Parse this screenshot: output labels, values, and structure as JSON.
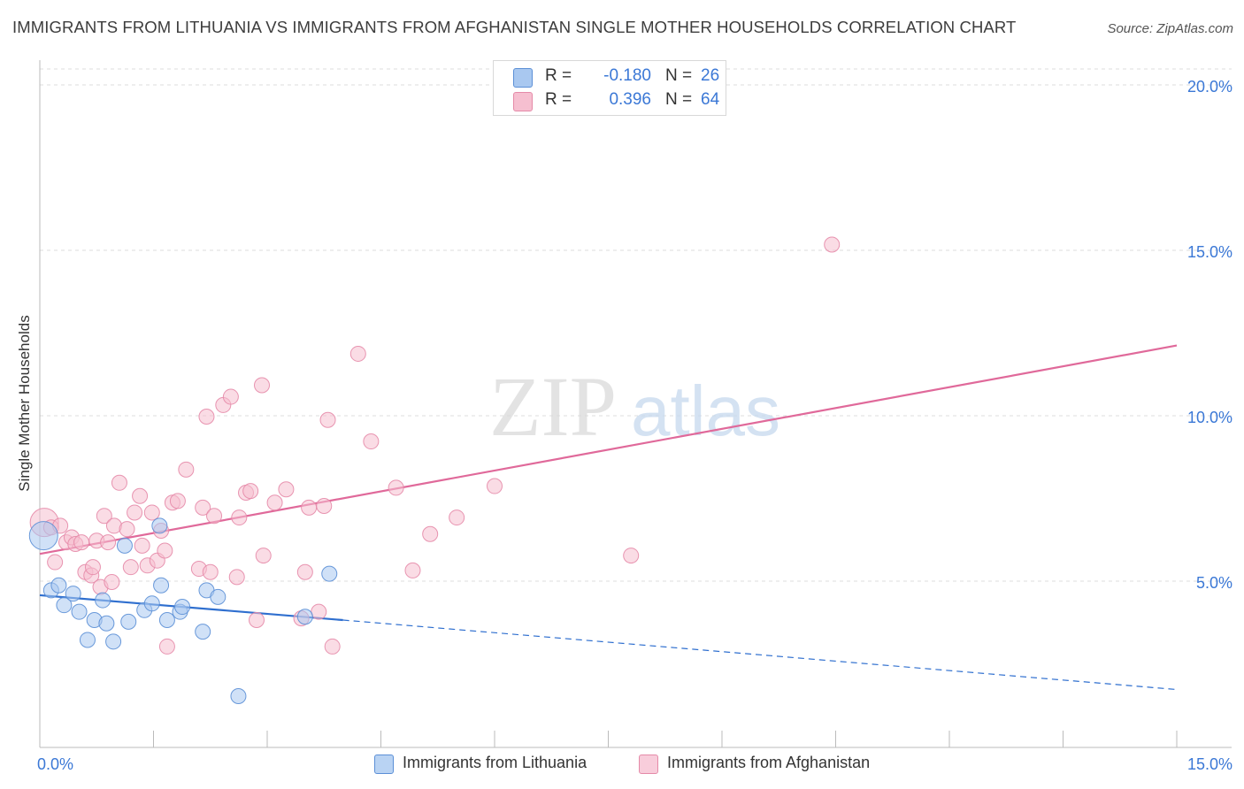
{
  "header": {
    "title": "IMMIGRANTS FROM LITHUANIA VS IMMIGRANTS FROM AFGHANISTAN SINGLE MOTHER HOUSEHOLDS CORRELATION CHART",
    "source": "Source: ZipAtlas.com"
  },
  "legend_top": {
    "rows": [
      {
        "label": "R =",
        "r_value": "-0.180",
        "n_label": "N =",
        "n_value": "26"
      },
      {
        "label": "R =",
        "r_value": "0.396",
        "n_label": "N =",
        "n_value": "64"
      }
    ]
  },
  "legend_bottom": {
    "items": [
      {
        "label": "Immigrants from Lithuania"
      },
      {
        "label": "Immigrants from Afghanistan"
      }
    ]
  },
  "colors": {
    "lithuania_fill": "#a9c8f0",
    "lithuania_stroke": "#5b8fd6",
    "lithuania_line": "#2f6fcf",
    "afghanistan_fill": "#f6bfd0",
    "afghanistan_stroke": "#e58aa8",
    "afghanistan_line": "#e0699a",
    "axis_text": "#3b78d6",
    "grid": "#dcdcdc"
  },
  "chart_data": {
    "type": "scatter",
    "title": "IMMIGRANTS FROM LITHUANIA VS IMMIGRANTS FROM AFGHANISTAN SINGLE MOTHER HOUSEHOLDS CORRELATION CHART",
    "xlabel": "",
    "ylabel": "Single Mother Households",
    "xlim": [
      0,
      15
    ],
    "ylim": [
      0,
      20.5
    ],
    "x_tick_labels": [
      {
        "value": 0,
        "label": "0.0%"
      },
      {
        "value": 15,
        "label": "15.0%"
      }
    ],
    "y_ticks": [
      {
        "value": 5,
        "label": "5.0%"
      },
      {
        "value": 10,
        "label": "10.0%"
      },
      {
        "value": 15,
        "label": "15.0%"
      },
      {
        "value": 20,
        "label": "20.0%"
      }
    ],
    "watermark": {
      "part1": "ZIP",
      "part2": "atlas"
    },
    "series": [
      {
        "name": "Immigrants from Lithuania",
        "r": -0.18,
        "n": 26,
        "trend": {
          "x0": 0.0,
          "y0": 4.6,
          "x1": 4.0,
          "y1": 3.85,
          "dash_to_x": 15.0,
          "dash_to_y": 1.75
        },
        "points": [
          {
            "x": 0.05,
            "y": 6.4,
            "size": "large"
          },
          {
            "x": 0.15,
            "y": 4.75
          },
          {
            "x": 0.25,
            "y": 4.9
          },
          {
            "x": 0.32,
            "y": 4.3
          },
          {
            "x": 0.44,
            "y": 4.65
          },
          {
            "x": 0.52,
            "y": 4.1
          },
          {
            "x": 0.63,
            "y": 3.25
          },
          {
            "x": 0.72,
            "y": 3.85
          },
          {
            "x": 0.83,
            "y": 4.45
          },
          {
            "x": 0.88,
            "y": 3.75
          },
          {
            "x": 0.97,
            "y": 3.2
          },
          {
            "x": 1.12,
            "y": 6.1
          },
          {
            "x": 1.17,
            "y": 3.8
          },
          {
            "x": 1.38,
            "y": 4.15
          },
          {
            "x": 1.48,
            "y": 4.35
          },
          {
            "x": 1.58,
            "y": 6.7
          },
          {
            "x": 1.6,
            "y": 4.9
          },
          {
            "x": 1.68,
            "y": 3.85
          },
          {
            "x": 1.85,
            "y": 4.1
          },
          {
            "x": 1.88,
            "y": 4.25
          },
          {
            "x": 2.15,
            "y": 3.5
          },
          {
            "x": 2.2,
            "y": 4.75
          },
          {
            "x": 2.35,
            "y": 4.55
          },
          {
            "x": 2.62,
            "y": 1.55
          },
          {
            "x": 3.5,
            "y": 3.95
          },
          {
            "x": 3.82,
            "y": 5.25
          }
        ]
      },
      {
        "name": "Immigrants from Afghanistan",
        "r": 0.396,
        "n": 64,
        "trend": {
          "x0": 0.0,
          "y0": 5.85,
          "x1": 15.0,
          "y1": 12.15
        },
        "points": [
          {
            "x": 0.06,
            "y": 6.8,
            "size": "large"
          },
          {
            "x": 0.15,
            "y": 6.65
          },
          {
            "x": 0.2,
            "y": 5.6
          },
          {
            "x": 0.27,
            "y": 6.7
          },
          {
            "x": 0.35,
            "y": 6.2
          },
          {
            "x": 0.42,
            "y": 6.35
          },
          {
            "x": 0.47,
            "y": 6.15
          },
          {
            "x": 0.55,
            "y": 6.2
          },
          {
            "x": 0.6,
            "y": 5.3
          },
          {
            "x": 0.68,
            "y": 5.2
          },
          {
            "x": 0.7,
            "y": 5.45
          },
          {
            "x": 0.75,
            "y": 6.25
          },
          {
            "x": 0.8,
            "y": 4.85
          },
          {
            "x": 0.85,
            "y": 7.0
          },
          {
            "x": 0.9,
            "y": 6.2
          },
          {
            "x": 0.95,
            "y": 5.0
          },
          {
            "x": 0.98,
            "y": 6.7
          },
          {
            "x": 1.05,
            "y": 8.0
          },
          {
            "x": 1.15,
            "y": 6.6
          },
          {
            "x": 1.2,
            "y": 5.45
          },
          {
            "x": 1.25,
            "y": 7.1
          },
          {
            "x": 1.32,
            "y": 7.6
          },
          {
            "x": 1.35,
            "y": 6.1
          },
          {
            "x": 1.42,
            "y": 5.5
          },
          {
            "x": 1.48,
            "y": 7.1
          },
          {
            "x": 1.55,
            "y": 5.65
          },
          {
            "x": 1.6,
            "y": 6.55
          },
          {
            "x": 1.65,
            "y": 5.95
          },
          {
            "x": 1.68,
            "y": 3.05
          },
          {
            "x": 1.75,
            "y": 7.4
          },
          {
            "x": 1.82,
            "y": 7.45
          },
          {
            "x": 1.93,
            "y": 8.4
          },
          {
            "x": 2.1,
            "y": 5.4
          },
          {
            "x": 2.15,
            "y": 7.25
          },
          {
            "x": 2.2,
            "y": 10.0
          },
          {
            "x": 2.25,
            "y": 5.3
          },
          {
            "x": 2.3,
            "y": 7.0
          },
          {
            "x": 2.42,
            "y": 10.35
          },
          {
            "x": 2.52,
            "y": 10.6
          },
          {
            "x": 2.6,
            "y": 5.15
          },
          {
            "x": 2.63,
            "y": 6.95
          },
          {
            "x": 2.72,
            "y": 7.7
          },
          {
            "x": 2.78,
            "y": 7.75
          },
          {
            "x": 2.86,
            "y": 3.85
          },
          {
            "x": 2.93,
            "y": 10.95
          },
          {
            "x": 2.95,
            "y": 5.8
          },
          {
            "x": 3.1,
            "y": 7.4
          },
          {
            "x": 3.25,
            "y": 7.8
          },
          {
            "x": 3.45,
            "y": 3.9
          },
          {
            "x": 3.5,
            "y": 5.3
          },
          {
            "x": 3.55,
            "y": 7.25
          },
          {
            "x": 3.68,
            "y": 4.1
          },
          {
            "x": 3.75,
            "y": 7.3
          },
          {
            "x": 3.8,
            "y": 9.9
          },
          {
            "x": 3.86,
            "y": 3.05
          },
          {
            "x": 4.2,
            "y": 11.9
          },
          {
            "x": 4.37,
            "y": 9.25
          },
          {
            "x": 4.7,
            "y": 7.85
          },
          {
            "x": 4.92,
            "y": 5.35
          },
          {
            "x": 5.15,
            "y": 6.45
          },
          {
            "x": 5.5,
            "y": 6.95
          },
          {
            "x": 6.0,
            "y": 7.9
          },
          {
            "x": 7.8,
            "y": 5.8
          },
          {
            "x": 10.45,
            "y": 15.2
          }
        ]
      }
    ]
  }
}
